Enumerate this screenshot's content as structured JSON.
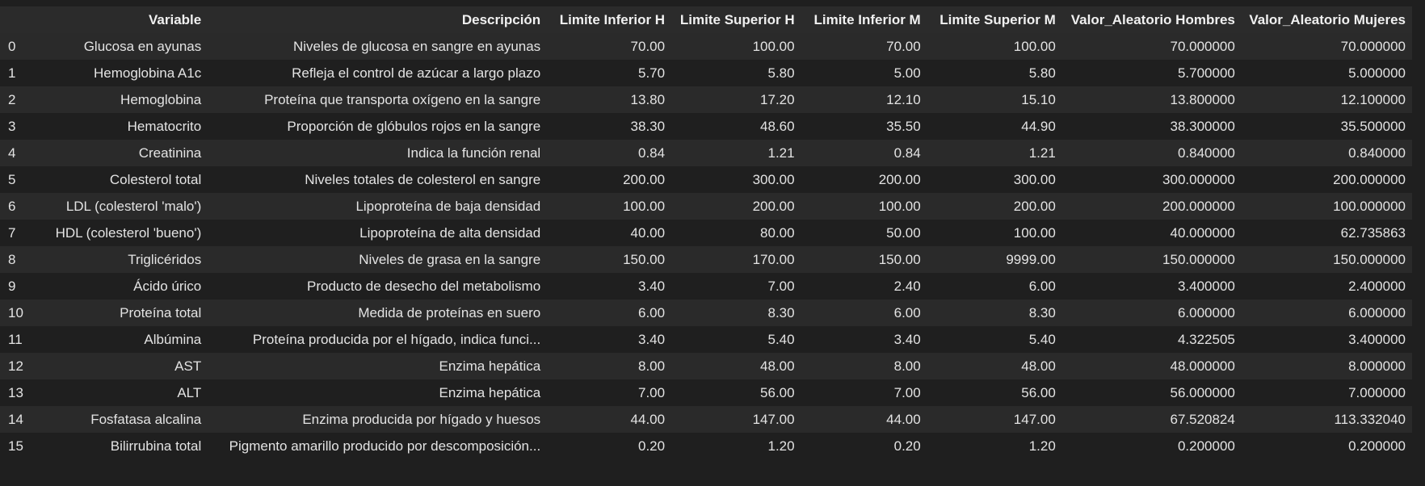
{
  "table": {
    "columns": [
      "",
      "Variable",
      "Descripción",
      "Limite Inferior H",
      "Limite Superior H",
      "Limite Inferior M",
      "Limite Superior M",
      "Valor_Aleatorio Hombres",
      "Valor_Aleatorio Mujeres"
    ],
    "rows": [
      [
        "0",
        "Glucosa en ayunas",
        "Niveles de glucosa en sangre en ayunas",
        "70.00",
        "100.00",
        "70.00",
        "100.00",
        "70.000000",
        "70.000000"
      ],
      [
        "1",
        "Hemoglobina A1c",
        "Refleja el control de azúcar a largo plazo",
        "5.70",
        "5.80",
        "5.00",
        "5.80",
        "5.700000",
        "5.000000"
      ],
      [
        "2",
        "Hemoglobina",
        "Proteína que transporta oxígeno en la sangre",
        "13.80",
        "17.20",
        "12.10",
        "15.10",
        "13.800000",
        "12.100000"
      ],
      [
        "3",
        "Hematocrito",
        "Proporción de glóbulos rojos en la sangre",
        "38.30",
        "48.60",
        "35.50",
        "44.90",
        "38.300000",
        "35.500000"
      ],
      [
        "4",
        "Creatinina",
        "Indica la función renal",
        "0.84",
        "1.21",
        "0.84",
        "1.21",
        "0.840000",
        "0.840000"
      ],
      [
        "5",
        "Colesterol total",
        "Niveles totales de colesterol en sangre",
        "200.00",
        "300.00",
        "200.00",
        "300.00",
        "300.000000",
        "200.000000"
      ],
      [
        "6",
        "LDL (colesterol 'malo')",
        "Lipoproteína de baja densidad",
        "100.00",
        "200.00",
        "100.00",
        "200.00",
        "200.000000",
        "100.000000"
      ],
      [
        "7",
        "HDL (colesterol 'bueno')",
        "Lipoproteína de alta densidad",
        "40.00",
        "80.00",
        "50.00",
        "100.00",
        "40.000000",
        "62.735863"
      ],
      [
        "8",
        "Triglicéridos",
        "Niveles de grasa en la sangre",
        "150.00",
        "170.00",
        "150.00",
        "9999.00",
        "150.000000",
        "150.000000"
      ],
      [
        "9",
        "Ácido úrico",
        "Producto de desecho del metabolismo",
        "3.40",
        "7.00",
        "2.40",
        "6.00",
        "3.400000",
        "2.400000"
      ],
      [
        "10",
        "Proteína total",
        "Medida de proteínas en suero",
        "6.00",
        "8.30",
        "6.00",
        "8.30",
        "6.000000",
        "6.000000"
      ],
      [
        "11",
        "Albúmina",
        "Proteína producida por el hígado, indica funci...",
        "3.40",
        "5.40",
        "3.40",
        "5.40",
        "4.322505",
        "3.400000"
      ],
      [
        "12",
        "AST",
        "Enzima hepática",
        "8.00",
        "48.00",
        "8.00",
        "48.00",
        "48.000000",
        "8.000000"
      ],
      [
        "13",
        "ALT",
        "Enzima hepática",
        "7.00",
        "56.00",
        "7.00",
        "56.00",
        "56.000000",
        "7.000000"
      ],
      [
        "14",
        "Fosfatasa alcalina",
        "Enzima producida por hígado y huesos",
        "44.00",
        "147.00",
        "44.00",
        "147.00",
        "67.520824",
        "113.332040"
      ],
      [
        "15",
        "Bilirrubina total",
        "Pigmento amarillo producido por descomposición...",
        "0.20",
        "1.20",
        "0.20",
        "1.20",
        "0.200000",
        "0.200000"
      ]
    ]
  }
}
